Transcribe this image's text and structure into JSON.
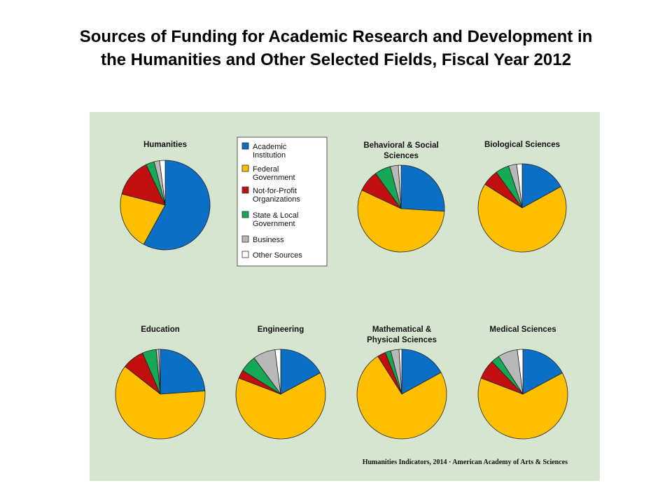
{
  "title": {
    "line1": "Sources of Funding for Academic Research and Development in",
    "line2": "the Humanities and Other Selected Fields, Fiscal Year 2012"
  },
  "colors": {
    "panel_bg": "#d6e5d0",
    "Academic Institution": "#0b6fc6",
    "Federal Government": "#fdbf00",
    "Not-for-Profit Organizations": "#c10f0f",
    "State & Local Government": "#16a955",
    "Business": "#b8b8b8",
    "Other Sources": "#ffffff"
  },
  "legend": {
    "items": [
      {
        "lines": [
          "Academic",
          "Institution"
        ],
        "key": "Academic Institution"
      },
      {
        "lines": [
          "Federal",
          "Government"
        ],
        "key": "Federal Government"
      },
      {
        "lines": [
          "Not-for-Profit",
          "Organizations"
        ],
        "key": "Not-for-Profit Organizations"
      },
      {
        "lines": [
          "State & Local",
          "Government"
        ],
        "key": "State & Local Government"
      },
      {
        "lines": [
          "Business"
        ],
        "key": "Business"
      },
      {
        "lines": [
          "Other Sources"
        ],
        "key": "Other Sources"
      }
    ]
  },
  "credit": "Humanities Indicators, 2014 · American Academy of Arts & Sciences",
  "chart_data": [
    {
      "type": "pie",
      "title": [
        "Humanities"
      ],
      "categories": [
        "Academic Institution",
        "Federal Government",
        "Not-for-Profit Organizations",
        "State & Local Government",
        "Business",
        "Other Sources"
      ],
      "values": [
        58,
        21,
        14,
        3,
        2,
        2
      ]
    },
    {
      "type": "pie",
      "title": [
        "Behavioral & Social",
        "Sciences"
      ],
      "categories": [
        "Academic Institution",
        "Federal Government",
        "Not-for-Profit Organizations",
        "State & Local Government",
        "Business",
        "Other Sources"
      ],
      "values": [
        26,
        56,
        8,
        6,
        3,
        1
      ]
    },
    {
      "type": "pie",
      "title": [
        "Biological Sciences"
      ],
      "categories": [
        "Academic Institution",
        "Federal Government",
        "Not-for-Profit Organizations",
        "State & Local Government",
        "Business",
        "Other Sources"
      ],
      "values": [
        17,
        67,
        6,
        5,
        3,
        2
      ]
    },
    {
      "type": "pie",
      "title": [
        "Education"
      ],
      "categories": [
        "Academic Institution",
        "Federal Government",
        "Not-for-Profit Organizations",
        "State & Local Government",
        "Business",
        "Other Sources"
      ],
      "values": [
        24,
        62,
        8,
        5,
        1,
        0.5
      ]
    },
    {
      "type": "pie",
      "title": [
        "Engineering"
      ],
      "categories": [
        "Academic Institution",
        "Federal Government",
        "Not-for-Profit Organizations",
        "State & Local Government",
        "Business",
        "Other Sources"
      ],
      "values": [
        17,
        63,
        3,
        6,
        8,
        2
      ]
    },
    {
      "type": "pie",
      "title": [
        "Mathematical &",
        "Physical Sciences"
      ],
      "categories": [
        "Academic Institution",
        "Federal Government",
        "Not-for-Profit Organizations",
        "State & Local Government",
        "Business",
        "Other Sources"
      ],
      "values": [
        17,
        74,
        3,
        2,
        3,
        1
      ]
    },
    {
      "type": "pie",
      "title": [
        "Medical Sciences"
      ],
      "categories": [
        "Academic Institution",
        "Federal Government",
        "Not-for-Profit Organizations",
        "State & Local Government",
        "Business",
        "Other Sources"
      ],
      "values": [
        17,
        63,
        7,
        3,
        7,
        2
      ]
    }
  ]
}
